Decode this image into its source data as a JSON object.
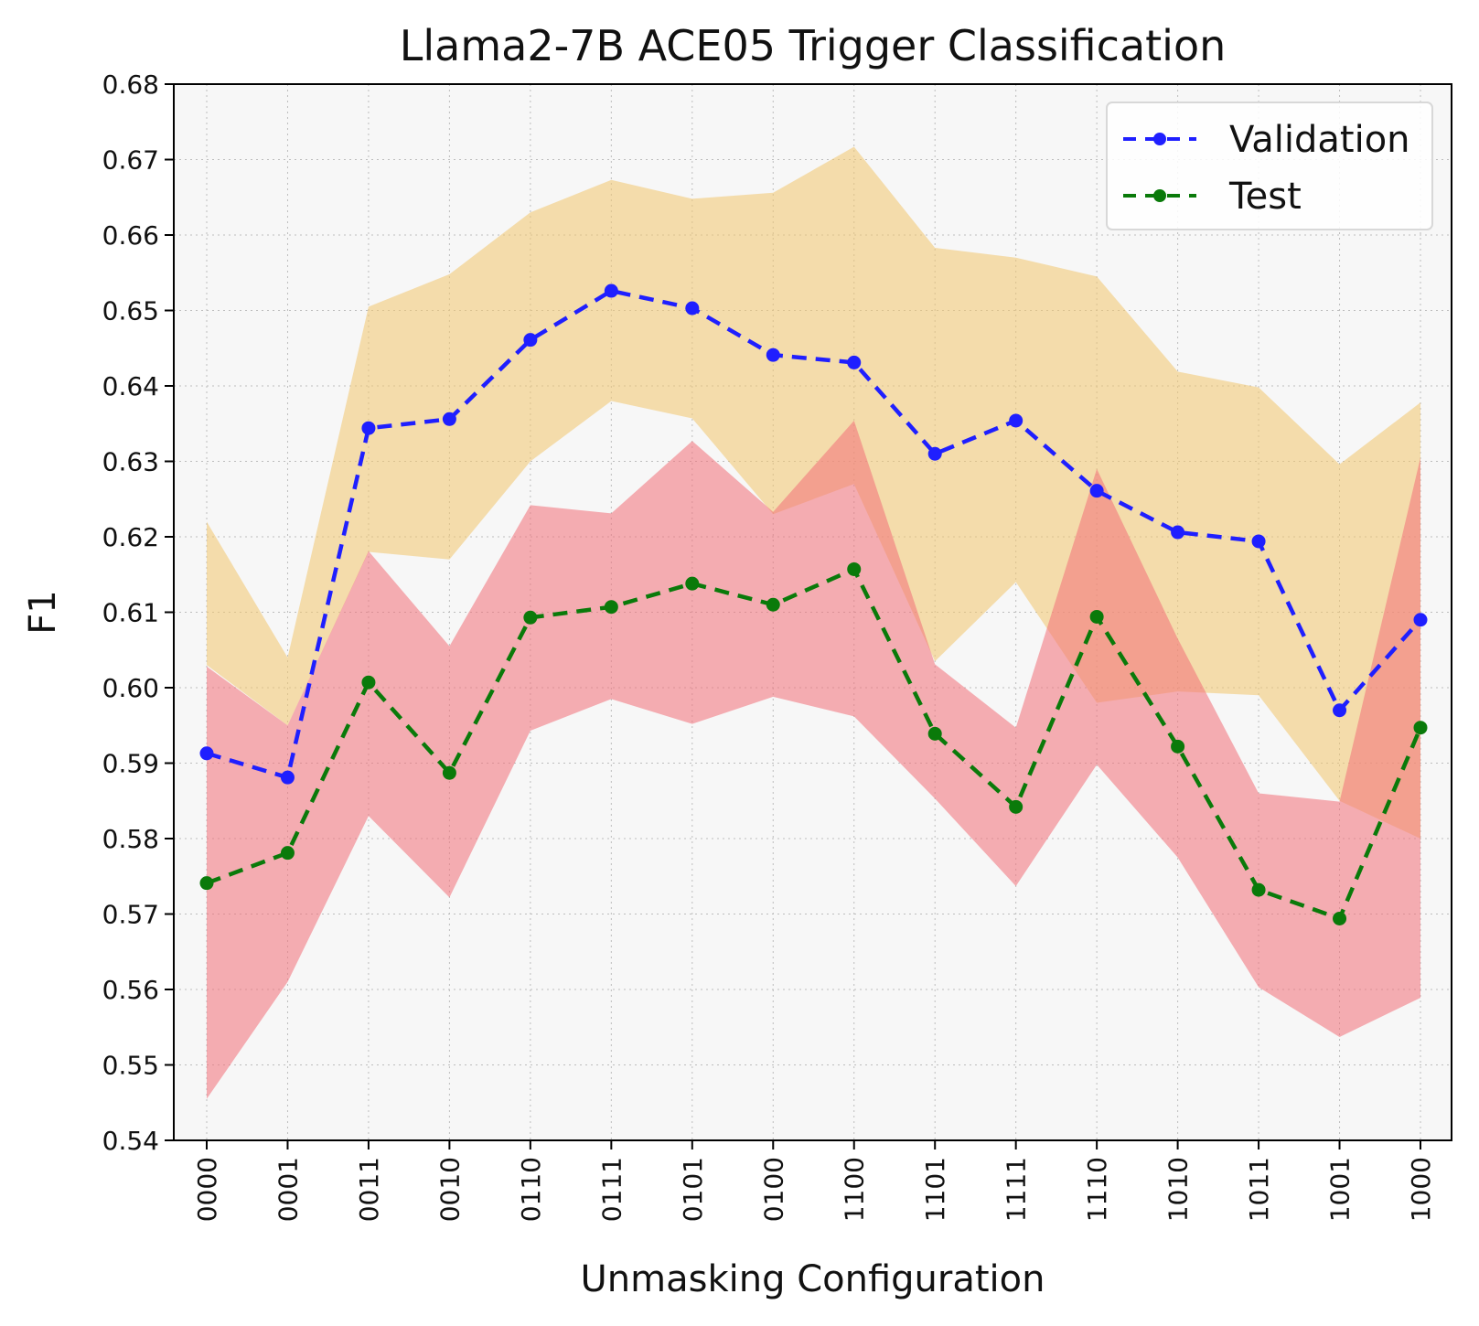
{
  "chart_data": {
    "type": "line",
    "title": "Llama2-7B ACE05 Trigger Classification",
    "xlabel": "Unmasking Configuration",
    "ylabel": "F1",
    "categories": [
      "0000",
      "0001",
      "0011",
      "0010",
      "0110",
      "0111",
      "0101",
      "0100",
      "1100",
      "1101",
      "1111",
      "1110",
      "1010",
      "1011",
      "1001",
      "1000"
    ],
    "ylim": [
      0.54,
      0.68
    ],
    "yticks": [
      "0.54",
      "0.55",
      "0.56",
      "0.57",
      "0.58",
      "0.59",
      "0.60",
      "0.61",
      "0.62",
      "0.63",
      "0.64",
      "0.65",
      "0.66",
      "0.67",
      "0.68"
    ],
    "grid": true,
    "legend_position": "top-right",
    "series": [
      {
        "name": "Validation",
        "color": "#1f1fff",
        "band_color": "#f2c66d",
        "band_opacity": 0.55,
        "values": [
          0.5913,
          0.5881,
          0.6344,
          0.6356,
          0.6461,
          0.6526,
          0.6503,
          0.6441,
          0.6431,
          0.631,
          0.6354,
          0.6261,
          0.6206,
          0.6194,
          0.597,
          0.609
        ],
        "lower": [
          0.603,
          0.595,
          0.618,
          0.617,
          0.63,
          0.638,
          0.6357,
          0.623,
          0.627,
          0.6035,
          0.614,
          0.598,
          0.5995,
          0.599,
          0.585,
          0.58
        ],
        "upper": [
          0.622,
          0.604,
          0.6505,
          0.6548,
          0.663,
          0.6673,
          0.6648,
          0.6656,
          0.6717,
          0.6583,
          0.657,
          0.6545,
          0.6419,
          0.6398,
          0.6296,
          0.6378
        ]
      },
      {
        "name": "Test",
        "color": "#0a7a0a",
        "band_color": "#f26f78",
        "band_opacity": 0.55,
        "values": [
          0.5741,
          0.5781,
          0.6007,
          0.5887,
          0.6093,
          0.6107,
          0.6138,
          0.611,
          0.6157,
          0.5939,
          0.5842,
          0.6094,
          0.5922,
          0.5732,
          0.5694,
          0.5947
        ],
        "lower": [
          0.5455,
          0.561,
          0.583,
          0.5722,
          0.5943,
          0.5985,
          0.5952,
          0.5988,
          0.5962,
          0.5853,
          0.5737,
          0.5898,
          0.5775,
          0.5603,
          0.5537,
          0.5589
        ],
        "upper": [
          0.6028,
          0.595,
          0.6181,
          0.6055,
          0.6242,
          0.6231,
          0.6327,
          0.6233,
          0.6354,
          0.6031,
          0.5947,
          0.629,
          0.6065,
          0.586,
          0.5849,
          0.6305
        ]
      }
    ]
  }
}
